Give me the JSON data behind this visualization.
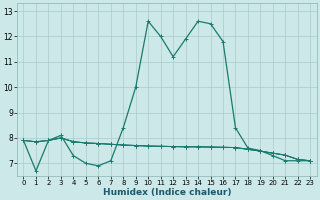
{
  "title": "",
  "xlabel": "Humidex (Indice chaleur)",
  "ylabel": "",
  "bg_color": "#cce8e8",
  "grid_color": "#aacccc",
  "line_color": "#1a7a6e",
  "xlim": [
    -0.5,
    23.5
  ],
  "ylim": [
    6.5,
    13.3
  ],
  "yticks": [
    7,
    8,
    9,
    10,
    11,
    12,
    13
  ],
  "xticks": [
    0,
    1,
    2,
    3,
    4,
    5,
    6,
    7,
    8,
    9,
    10,
    11,
    12,
    13,
    14,
    15,
    16,
    17,
    18,
    19,
    20,
    21,
    22,
    23
  ],
  "series": [
    [
      7.9,
      6.7,
      7.9,
      8.1,
      7.3,
      7.0,
      6.9,
      7.1,
      8.4,
      10.0,
      12.6,
      12.0,
      11.2,
      11.9,
      12.6,
      12.5,
      11.8,
      8.4,
      7.6,
      7.5,
      7.3,
      7.1,
      7.1,
      7.1
    ],
    [
      7.9,
      7.85,
      7.9,
      8.0,
      7.85,
      7.8,
      7.78,
      7.75,
      7.72,
      7.7,
      7.68,
      7.67,
      7.66,
      7.65,
      7.65,
      7.64,
      7.63,
      7.62,
      7.55,
      7.48,
      7.4,
      7.32,
      7.15,
      7.1
    ],
    [
      7.9,
      7.85,
      7.9,
      8.0,
      7.85,
      7.8,
      7.78,
      7.75,
      7.72,
      7.7,
      7.68,
      7.67,
      7.66,
      7.65,
      7.65,
      7.64,
      7.63,
      7.62,
      7.55,
      7.48,
      7.4,
      7.32,
      7.15,
      7.1
    ],
    [
      7.9,
      7.85,
      7.9,
      8.0,
      7.85,
      7.8,
      7.78,
      7.75,
      7.72,
      7.7,
      7.68,
      7.67,
      7.66,
      7.65,
      7.65,
      7.64,
      7.63,
      7.62,
      7.55,
      7.48,
      7.4,
      7.32,
      7.15,
      7.1
    ]
  ],
  "tick_fontsize": 5,
  "xlabel_fontsize": 6.5,
  "xlabel_color": "#1a5a6e",
  "linewidth_main": 0.9,
  "linewidth_flat": 0.7,
  "marker_size": 2.5,
  "marker_ew": 0.7
}
